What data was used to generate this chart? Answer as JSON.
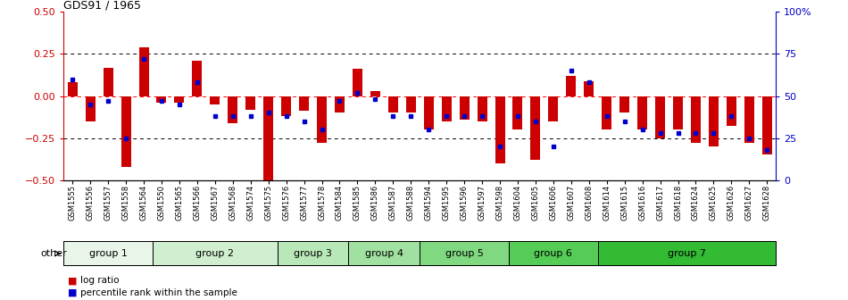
{
  "title": "GDS91 / 1965",
  "samples": [
    "GSM1555",
    "GSM1556",
    "GSM1557",
    "GSM1558",
    "GSM1564",
    "GSM1550",
    "GSM1565",
    "GSM1566",
    "GSM1567",
    "GSM1568",
    "GSM1574",
    "GSM1575",
    "GSM1576",
    "GSM1577",
    "GSM1578",
    "GSM1584",
    "GSM1585",
    "GSM1586",
    "GSM1587",
    "GSM1588",
    "GSM1594",
    "GSM1595",
    "GSM1596",
    "GSM1597",
    "GSM1598",
    "GSM1604",
    "GSM1605",
    "GSM1606",
    "GSM1607",
    "GSM1608",
    "GSM1614",
    "GSM1615",
    "GSM1616",
    "GSM1617",
    "GSM1618",
    "GSM1624",
    "GSM1625",
    "GSM1626",
    "GSM1627",
    "GSM1628"
  ],
  "log_ratio": [
    0.08,
    -0.15,
    0.17,
    -0.42,
    0.29,
    -0.04,
    -0.04,
    0.21,
    -0.05,
    -0.16,
    -0.08,
    -0.52,
    -0.12,
    -0.09,
    -0.28,
    -0.1,
    0.16,
    0.03,
    -0.1,
    -0.1,
    -0.2,
    -0.15,
    -0.14,
    -0.15,
    -0.4,
    -0.2,
    -0.38,
    -0.15,
    0.12,
    0.09,
    -0.2,
    -0.1,
    -0.2,
    -0.25,
    -0.2,
    -0.28,
    -0.3,
    -0.18,
    -0.28,
    -0.35
  ],
  "percentile": [
    60,
    45,
    47,
    25,
    72,
    47,
    45,
    58,
    38,
    38,
    38,
    40,
    38,
    35,
    30,
    47,
    52,
    48,
    38,
    38,
    30,
    38,
    38,
    38,
    20,
    38,
    35,
    20,
    65,
    58,
    38,
    35,
    30,
    28,
    28,
    28,
    28,
    38,
    25,
    18
  ],
  "group_defs": [
    {
      "name": "group 1",
      "start": 0,
      "end": 4,
      "color": "#e8f5e8"
    },
    {
      "name": "group 2",
      "start": 5,
      "end": 11,
      "color": "#d0efd0"
    },
    {
      "name": "group 3",
      "start": 12,
      "end": 15,
      "color": "#b8e8b8"
    },
    {
      "name": "group 4",
      "start": 16,
      "end": 19,
      "color": "#a0e0a0"
    },
    {
      "name": "group 5",
      "start": 20,
      "end": 24,
      "color": "#80d880"
    },
    {
      "name": "group 6",
      "start": 25,
      "end": 29,
      "color": "#55cc55"
    },
    {
      "name": "group 7",
      "start": 30,
      "end": 39,
      "color": "#33bb33"
    }
  ],
  "ylim": [
    -0.5,
    0.5
  ],
  "yticks_left": [
    -0.5,
    -0.25,
    0.0,
    0.25,
    0.5
  ],
  "yticks_right_pct": [
    0,
    25,
    50,
    75,
    100
  ],
  "yticks_right_labels": [
    "0",
    "25",
    "50",
    "75",
    "100%"
  ],
  "hlines_dotted": [
    -0.25,
    0.25
  ],
  "hline_red": 0.0,
  "bar_color": "#cc0000",
  "dot_color": "#0000cc",
  "bg_color": "#ffffff",
  "left_spine_color": "#cc0000",
  "right_spine_color": "#0000cc"
}
